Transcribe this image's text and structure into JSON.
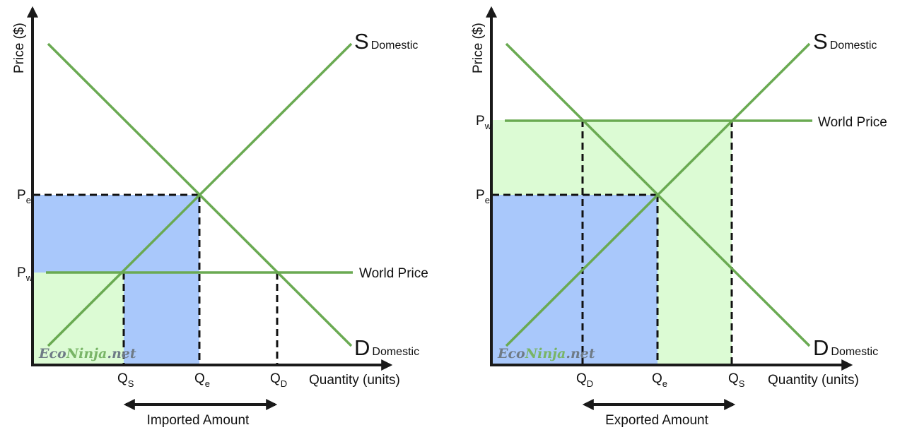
{
  "colors": {
    "curve": "#6aaa52",
    "blue_fill": "#a9c8fb",
    "green_fill": "#dcfbd4",
    "axis": "#1a1a1a",
    "watermark_a": "#6f7b86",
    "watermark_b": "#79b567"
  },
  "diagrams": [
    {
      "y_axis_label": "Price ($)",
      "x_axis_label": "Quantity (units)",
      "supply_label": {
        "main": "S",
        "sub": "Domestic"
      },
      "demand_label": {
        "main": "D",
        "sub": "Domestic"
      },
      "world_price_label": "World Price",
      "price_ticks": [
        {
          "main": "P",
          "sub": "e"
        },
        {
          "main": "P",
          "sub": "w"
        }
      ],
      "quantity_ticks": [
        {
          "main": "Q",
          "sub": "S"
        },
        {
          "main": "Q",
          "sub": "e"
        },
        {
          "main": "Q",
          "sub": "D"
        }
      ],
      "amount_label": "Imported Amount",
      "watermark": {
        "part1": "Eco",
        "part2": "Ninja",
        "part3": ".net"
      }
    },
    {
      "y_axis_label": "Price ($)",
      "x_axis_label": "Quantity (units)",
      "supply_label": {
        "main": "S",
        "sub": "Domestic"
      },
      "demand_label": {
        "main": "D",
        "sub": "Domestic"
      },
      "world_price_label": "World Price",
      "price_ticks": [
        {
          "main": "P",
          "sub": "w"
        },
        {
          "main": "P",
          "sub": "e"
        }
      ],
      "quantity_ticks": [
        {
          "main": "Q",
          "sub": "D"
        },
        {
          "main": "Q",
          "sub": "e"
        },
        {
          "main": "Q",
          "sub": "S"
        }
      ],
      "amount_label": "Exported Amount",
      "watermark": {
        "part1": "Eco",
        "part2": "Ninja",
        "part3": ".net"
      }
    }
  ]
}
